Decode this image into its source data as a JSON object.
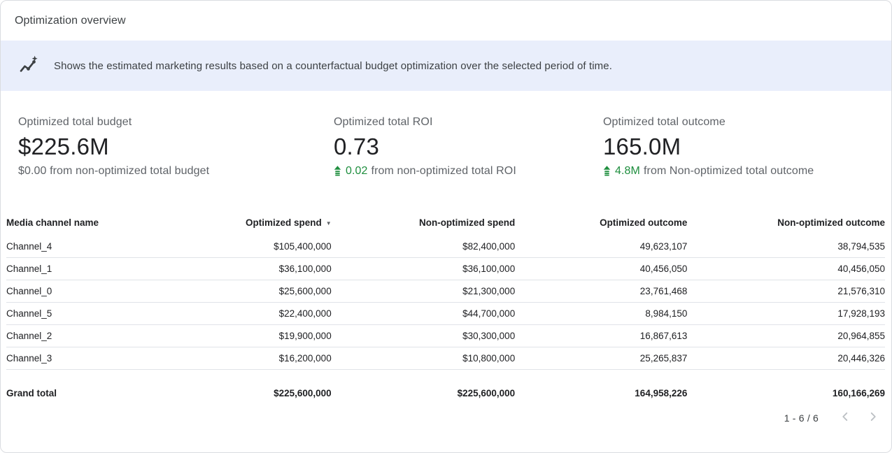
{
  "card": {
    "title": "Optimization overview"
  },
  "banner": {
    "text": "Shows the estimated marketing results based on a counterfactual budget optimization over the selected period of time."
  },
  "kpis": [
    {
      "label": "Optimized total budget",
      "value": "$225.6M",
      "delta_value": "",
      "delta_text": "$0.00 from non-optimized total budget"
    },
    {
      "label": "Optimized total ROI",
      "value": "0.73",
      "delta_value": "0.02",
      "delta_text": "from non-optimized total ROI"
    },
    {
      "label": "Optimized total outcome",
      "value": "165.0M",
      "delta_value": "4.8M",
      "delta_text": "from Non-optimized total outcome"
    }
  ],
  "icons": {
    "sort_desc": "▼"
  },
  "colors": {
    "accent_green": "#1e8e3e",
    "banner_bg": "#e9eefb",
    "row_border": "#e0e3e8"
  },
  "table": {
    "columns": [
      "Media channel name",
      "Optimized spend",
      "Non-optimized spend",
      "Optimized outcome",
      "Non-optimized outcome"
    ],
    "sorted_column": "Optimized spend",
    "sort_direction": "desc",
    "rows": [
      [
        "Channel_4",
        "$105,400,000",
        "$82,400,000",
        "49,623,107",
        "38,794,535"
      ],
      [
        "Channel_1",
        "$36,100,000",
        "$36,100,000",
        "40,456,050",
        "40,456,050"
      ],
      [
        "Channel_0",
        "$25,600,000",
        "$21,300,000",
        "23,761,468",
        "21,576,310"
      ],
      [
        "Channel_5",
        "$22,400,000",
        "$44,700,000",
        "8,984,150",
        "17,928,193"
      ],
      [
        "Channel_2",
        "$19,900,000",
        "$30,300,000",
        "16,867,613",
        "20,964,855"
      ],
      [
        "Channel_3",
        "$16,200,000",
        "$10,800,000",
        "25,265,837",
        "20,446,326"
      ]
    ],
    "grand_total": [
      "Grand total",
      "$225,600,000",
      "$225,600,000",
      "164,958,226",
      "160,166,269"
    ]
  },
  "pagination": {
    "range": "1 - 6 / 6"
  }
}
